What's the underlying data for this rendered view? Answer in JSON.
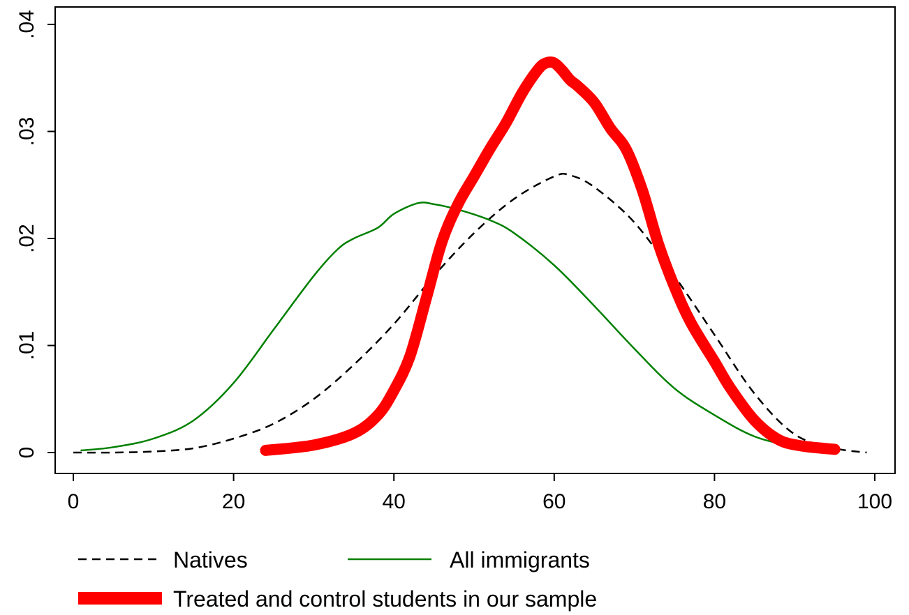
{
  "chart_data": {
    "type": "line",
    "title": "",
    "xlabel": "",
    "ylabel": "",
    "xlim": [
      0,
      100
    ],
    "ylim": [
      0,
      0.04
    ],
    "x_ticks": [
      0,
      20,
      40,
      60,
      80,
      100
    ],
    "x_tick_labels": [
      "0",
      "20",
      "40",
      "60",
      "80",
      "100"
    ],
    "y_ticks": [
      0,
      0.01,
      0.02,
      0.03,
      0.04
    ],
    "y_tick_labels": [
      "0",
      ".01",
      ".02",
      ".03",
      ".04"
    ],
    "grid": false,
    "legend_position": "bottom",
    "series": [
      {
        "name": "Natives",
        "color": "#000000",
        "style": "dashed",
        "points": [
          [
            0,
            0.0
          ],
          [
            5,
            0.0
          ],
          [
            10,
            0.0001
          ],
          [
            15,
            0.0004
          ],
          [
            20,
            0.0013
          ],
          [
            25,
            0.0027
          ],
          [
            30,
            0.005
          ],
          [
            35,
            0.0082
          ],
          [
            40,
            0.012
          ],
          [
            45,
            0.0165
          ],
          [
            50,
            0.0205
          ],
          [
            55,
            0.0237
          ],
          [
            60,
            0.0258
          ],
          [
            62,
            0.0259
          ],
          [
            65,
            0.0248
          ],
          [
            70,
            0.0215
          ],
          [
            75,
            0.0165
          ],
          [
            80,
            0.011
          ],
          [
            85,
            0.0055
          ],
          [
            90,
            0.0017
          ],
          [
            95,
            0.0004
          ],
          [
            99,
            0.0
          ]
        ]
      },
      {
        "name": "All immigrants",
        "color": "#008000",
        "style": "solid",
        "points": [
          [
            1,
            0.0002
          ],
          [
            5,
            0.0005
          ],
          [
            10,
            0.0013
          ],
          [
            15,
            0.003
          ],
          [
            20,
            0.0065
          ],
          [
            25,
            0.0115
          ],
          [
            30,
            0.0165
          ],
          [
            33,
            0.019
          ],
          [
            35,
            0.02
          ],
          [
            38,
            0.021
          ],
          [
            40,
            0.0223
          ],
          [
            43,
            0.0233
          ],
          [
            45,
            0.0232
          ],
          [
            48,
            0.0227
          ],
          [
            52,
            0.0217
          ],
          [
            55,
            0.0205
          ],
          [
            60,
            0.0175
          ],
          [
            65,
            0.0137
          ],
          [
            70,
            0.0097
          ],
          [
            75,
            0.006
          ],
          [
            80,
            0.0035
          ],
          [
            85,
            0.0015
          ],
          [
            90,
            0.0006
          ],
          [
            95,
            0.0002
          ]
        ]
      },
      {
        "name": "Treated and control students in our sample",
        "color": "#ff0000",
        "style": "solid-thick",
        "points": [
          [
            24,
            0.0002
          ],
          [
            30,
            0.0007
          ],
          [
            35,
            0.0018
          ],
          [
            38,
            0.0035
          ],
          [
            40,
            0.0058
          ],
          [
            42,
            0.009
          ],
          [
            44,
            0.0143
          ],
          [
            46,
            0.0197
          ],
          [
            48,
            0.0232
          ],
          [
            50,
            0.0258
          ],
          [
            52,
            0.0284
          ],
          [
            54,
            0.0308
          ],
          [
            56,
            0.0336
          ],
          [
            58,
            0.0358
          ],
          [
            59,
            0.0364
          ],
          [
            60,
            0.0364
          ],
          [
            61,
            0.0357
          ],
          [
            62,
            0.0348
          ],
          [
            63,
            0.0342
          ],
          [
            65,
            0.0327
          ],
          [
            67,
            0.0303
          ],
          [
            69,
            0.0283
          ],
          [
            71,
            0.0245
          ],
          [
            73,
            0.0195
          ],
          [
            75,
            0.0155
          ],
          [
            77,
            0.0122
          ],
          [
            80,
            0.0085
          ],
          [
            82,
            0.006
          ],
          [
            85,
            0.003
          ],
          [
            88,
            0.0012
          ],
          [
            91,
            0.0006
          ],
          [
            95,
            0.0003
          ]
        ]
      }
    ]
  },
  "legend": {
    "items": [
      {
        "label": "Natives"
      },
      {
        "label": "All immigrants"
      },
      {
        "label": "Treated and control students in our sample"
      }
    ]
  }
}
